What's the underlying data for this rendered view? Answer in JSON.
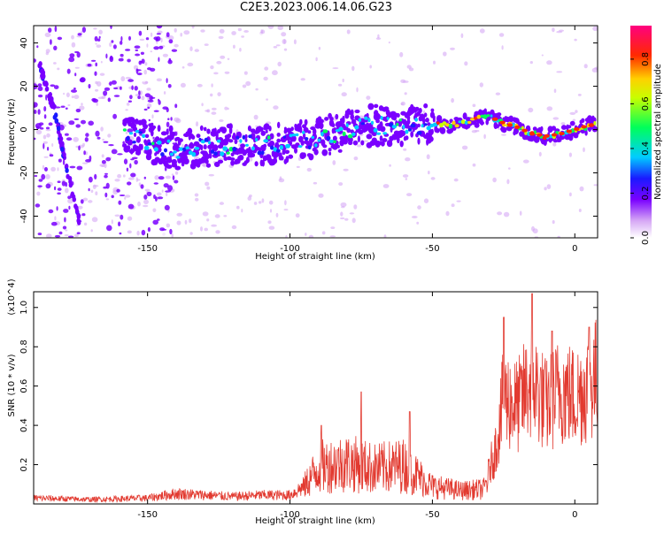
{
  "figure": {
    "title": "C2E3.2023.006.14.06.G23"
  },
  "chart_data": [
    {
      "type": "heatmap",
      "xlabel": "Height of straight line (km)",
      "ylabel": "Frequency (Hz)",
      "xlim": [
        -190,
        8
      ],
      "ylim": [
        -50,
        48
      ],
      "xticks": [
        -150,
        -100,
        -50,
        0
      ],
      "yticks": [
        -40,
        -20,
        0,
        20,
        40
      ],
      "grid": false,
      "colorbar": {
        "label": "Normalized spectral amplitude",
        "range": [
          0,
          0.95
        ],
        "ticks": [
          "0.0",
          "0.2",
          "0.4",
          "0.6",
          "0.8"
        ]
      },
      "ridge": [
        {
          "x": -155,
          "y": -3
        },
        {
          "x": -150,
          "y": -6
        },
        {
          "x": -140,
          "y": -9
        },
        {
          "x": -130,
          "y": -8
        },
        {
          "x": -120,
          "y": -7
        },
        {
          "x": -110,
          "y": -7
        },
        {
          "x": -100,
          "y": -6
        },
        {
          "x": -90,
          "y": -4
        },
        {
          "x": -80,
          "y": 0
        },
        {
          "x": -70,
          "y": 2
        },
        {
          "x": -60,
          "y": 1
        },
        {
          "x": -50,
          "y": 3
        },
        {
          "x": -45,
          "y": 2
        },
        {
          "x": -40,
          "y": 3
        },
        {
          "x": -35,
          "y": 5
        },
        {
          "x": -30,
          "y": 6
        },
        {
          "x": -25,
          "y": 3
        },
        {
          "x": -20,
          "y": 1
        },
        {
          "x": -15,
          "y": -2
        },
        {
          "x": -10,
          "y": -3
        },
        {
          "x": -5,
          "y": -2
        },
        {
          "x": 0,
          "y": 0
        },
        {
          "x": 5,
          "y": 2
        }
      ],
      "streak": [
        {
          "x": -188,
          "y": 30
        },
        {
          "x": -185,
          "y": 18
        },
        {
          "x": -182,
          "y": 5
        },
        {
          "x": -180,
          "y": -8
        },
        {
          "x": -178,
          "y": -20
        },
        {
          "x": -176,
          "y": -30
        },
        {
          "x": -174,
          "y": -42
        }
      ]
    },
    {
      "type": "line",
      "xlabel": "Height of straight line (km)",
      "ylabel": "SNR (10 * v/v)",
      "yunit": "(x10^4)",
      "xlim": [
        -190,
        8
      ],
      "ylim": [
        0,
        1.08
      ],
      "xticks": [
        -150,
        -100,
        -50,
        0
      ],
      "yticks": [
        0.2,
        0.4,
        0.6,
        0.8,
        1.0
      ],
      "grid": false,
      "series_color": "#e23a30",
      "envelope": [
        {
          "x": -190,
          "y": 0.04
        },
        {
          "x": -170,
          "y": 0.03
        },
        {
          "x": -150,
          "y": 0.04
        },
        {
          "x": -140,
          "y": 0.07
        },
        {
          "x": -120,
          "y": 0.05
        },
        {
          "x": -110,
          "y": 0.06
        },
        {
          "x": -100,
          "y": 0.06
        },
        {
          "x": -95,
          "y": 0.12
        },
        {
          "x": -90,
          "y": 0.25
        },
        {
          "x": -80,
          "y": 0.28
        },
        {
          "x": -70,
          "y": 0.24
        },
        {
          "x": -60,
          "y": 0.26
        },
        {
          "x": -50,
          "y": 0.12
        },
        {
          "x": -40,
          "y": 0.09
        },
        {
          "x": -32,
          "y": 0.1
        },
        {
          "x": -28,
          "y": 0.3
        },
        {
          "x": -25,
          "y": 0.6
        },
        {
          "x": -20,
          "y": 0.55
        },
        {
          "x": -15,
          "y": 0.7
        },
        {
          "x": -10,
          "y": 0.55
        },
        {
          "x": -5,
          "y": 0.65
        },
        {
          "x": 0,
          "y": 0.6
        },
        {
          "x": 8,
          "y": 0.72
        }
      ],
      "peaks": [
        {
          "x": -89,
          "y": 0.4
        },
        {
          "x": -75,
          "y": 0.57
        },
        {
          "x": -58,
          "y": 0.47
        },
        {
          "x": -25,
          "y": 0.95
        },
        {
          "x": -15,
          "y": 1.07
        },
        {
          "x": -8,
          "y": 0.88
        },
        {
          "x": 5,
          "y": 0.9
        }
      ]
    }
  ]
}
